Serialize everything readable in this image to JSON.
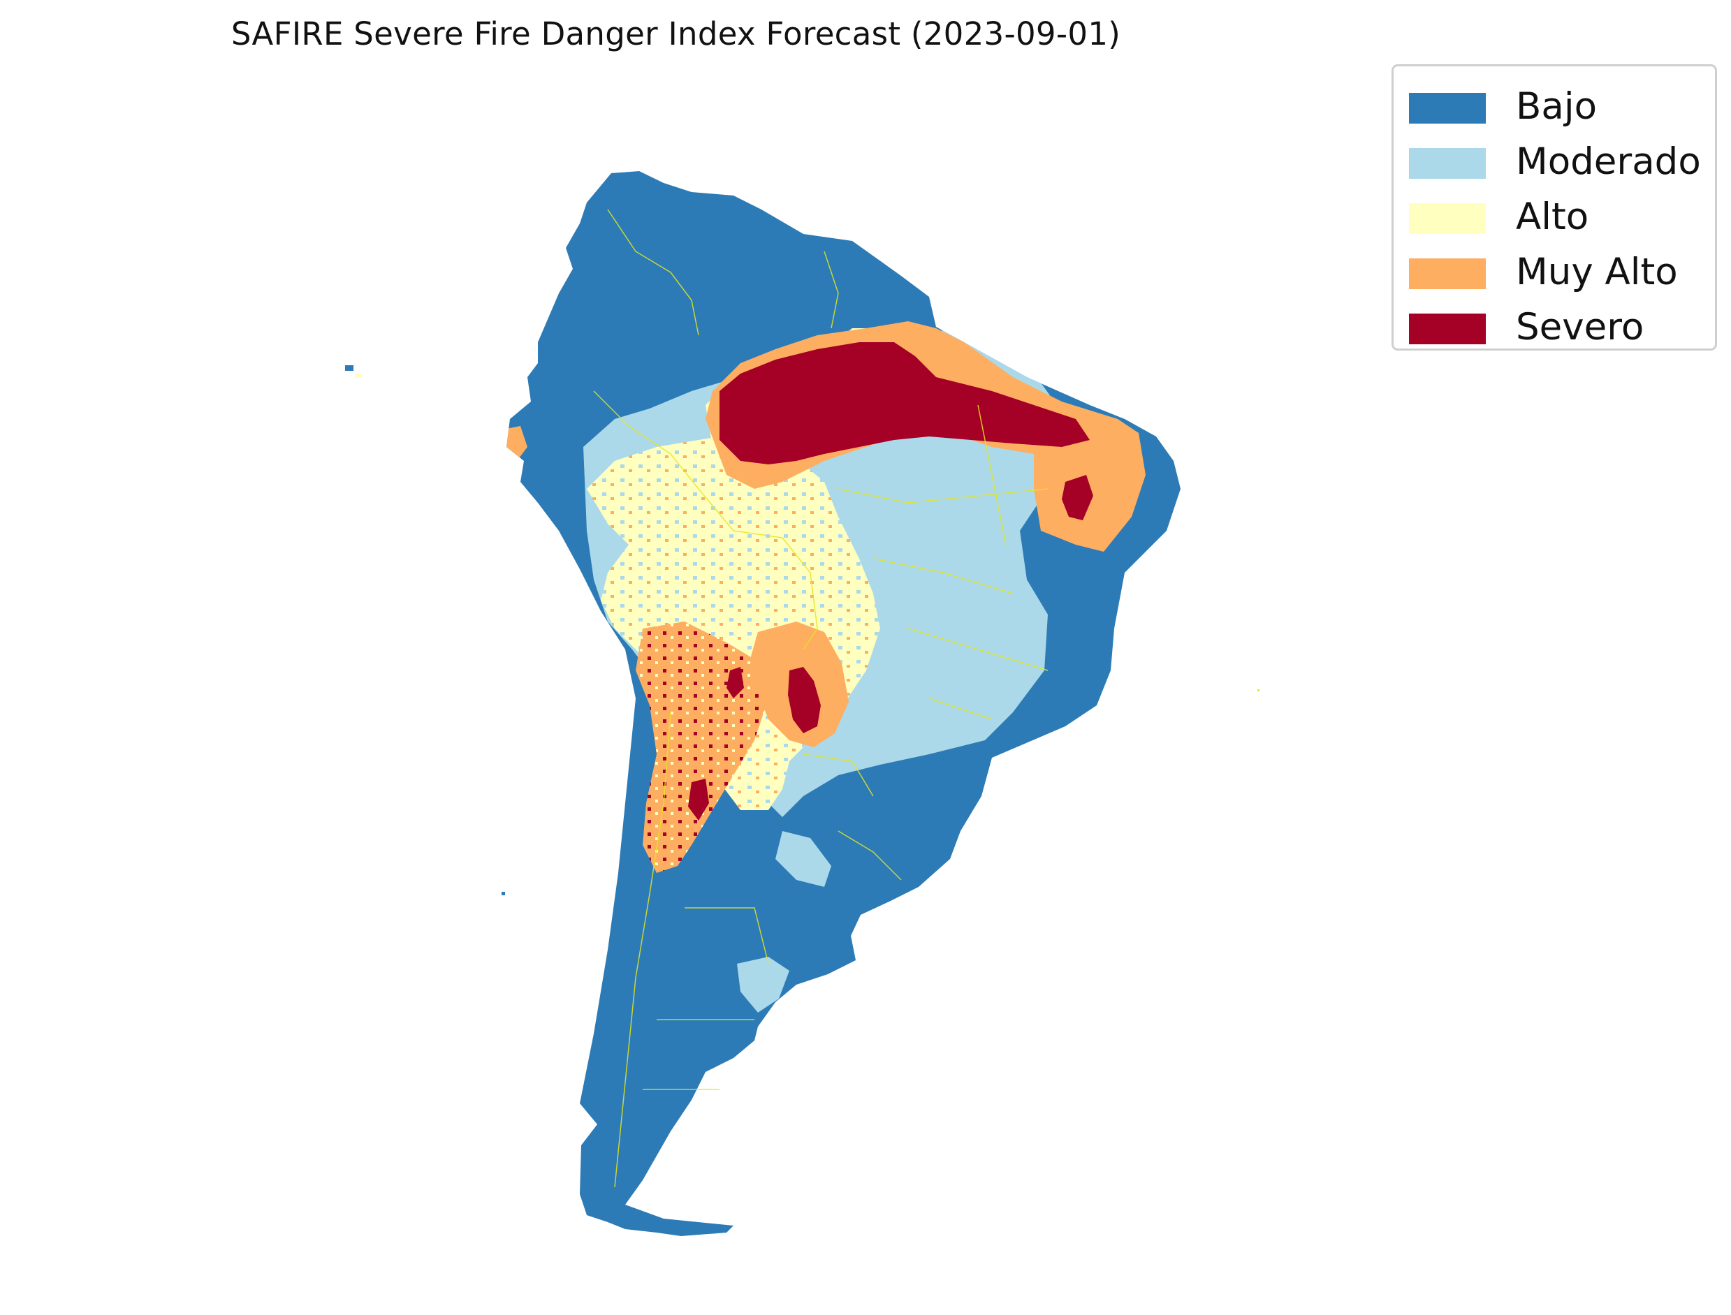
{
  "map": {
    "title": "SAFIRE Severe Fire Danger Index Forecast (2023-09-01)",
    "region": "South America",
    "border_color": "#e3e620",
    "colors": {
      "bajo": "#2c7bb6",
      "moderado": "#abd9e9",
      "alto": "#ffffbf",
      "muy_alto": "#fdae61",
      "severo": "#a50026"
    }
  },
  "legend": {
    "items": [
      {
        "label": "Bajo",
        "color": "#2c7bb6"
      },
      {
        "label": "Moderado",
        "color": "#abd9e9"
      },
      {
        "label": "Alto",
        "color": "#ffffbf"
      },
      {
        "label": "Muy Alto",
        "color": "#fdae61"
      },
      {
        "label": "Severo",
        "color": "#a50026"
      }
    ]
  }
}
